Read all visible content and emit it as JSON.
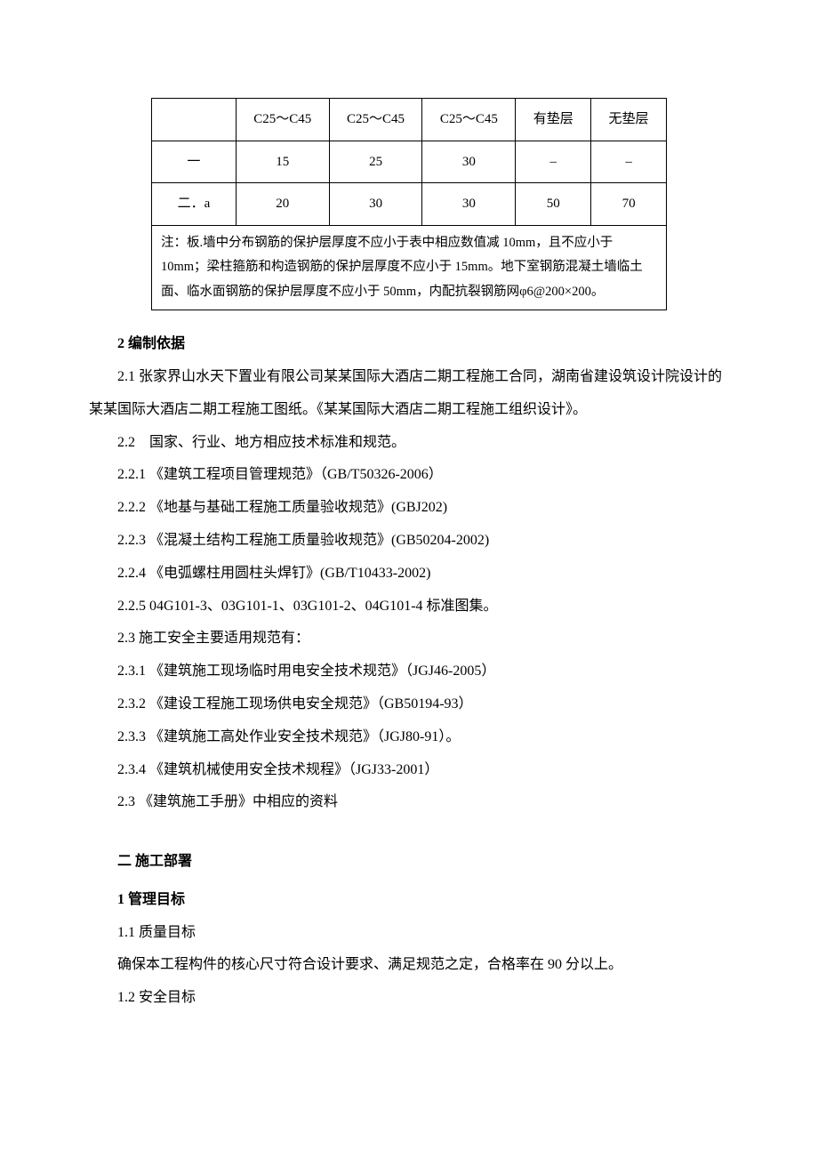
{
  "table": {
    "headers": [
      "",
      "C25～C45",
      "C25～C45",
      "C25～C45",
      "有垫层",
      "无垫层"
    ],
    "rows": [
      [
        "一",
        "15",
        "25",
        "30",
        "–",
        "–"
      ],
      [
        "二．a",
        "20",
        "30",
        "30",
        "50",
        "70"
      ]
    ],
    "note": "注：板.墙中分布钢筋的保护层厚度不应小于表中相应数值减 10mm，且不应小于 10mm；梁柱箍筋和构造钢筋的保护层厚度不应小于 15mm。地下室钢筋混凝土墙临土面、临水面钢筋的保护层厚度不应小于 50mm，内配抗裂钢筋网φ6@200×200。"
  },
  "sec2": {
    "title": "2 编制依据",
    "p1": "2.1 张家界山水天下置业有限公司某某国际大酒店二期工程施工合同，湖南省建设筑设计院设计的某某国际大酒店二期工程施工图纸。《某某国际大酒店二期工程施工组织设计》。",
    "p2": "2.2　国家、行业、地方相应技术标准和规范。",
    "p3": "2.2.1 《建筑工程项目管理规范》（GB/T50326-2006）",
    "p4": "2.2.2 《地基与基础工程施工质量验收规范》(GBJ202)",
    "p5": "2.2.3 《混凝土结构工程施工质量验收规范》(GB50204-2002)",
    "p6": "2.2.4 《电弧螺柱用圆柱头焊钉》(GB/T10433-2002)",
    "p7": "2.2.5 04G101-3、03G101-1、03G101-2、04G101-4 标准图集。",
    "p8": "2.3 施工安全主要适用规范有：",
    "p9": "2.3.1 《建筑施工现场临时用电安全技术规范》（JGJ46-2005）",
    "p10": "2.3.2 《建设工程施工现场供电安全规范》（GB50194-93）",
    "p11": "2.3.3 《建筑施工高处作业安全技术规范》（JGJ80-91）。",
    "p12": "2.3.4 《建筑机械使用安全技术规程》（JGJ33-2001）",
    "p13": "2.3 《建筑施工手册》中相应的资料"
  },
  "sec_deploy": {
    "title": "二 施工部署",
    "sub1": "1 管理目标",
    "p1": "1.1 质量目标",
    "p2": "确保本工程构件的核心尺寸符合设计要求、满足规范之定，合格率在 90 分以上。",
    "p3": "1.2 安全目标"
  }
}
